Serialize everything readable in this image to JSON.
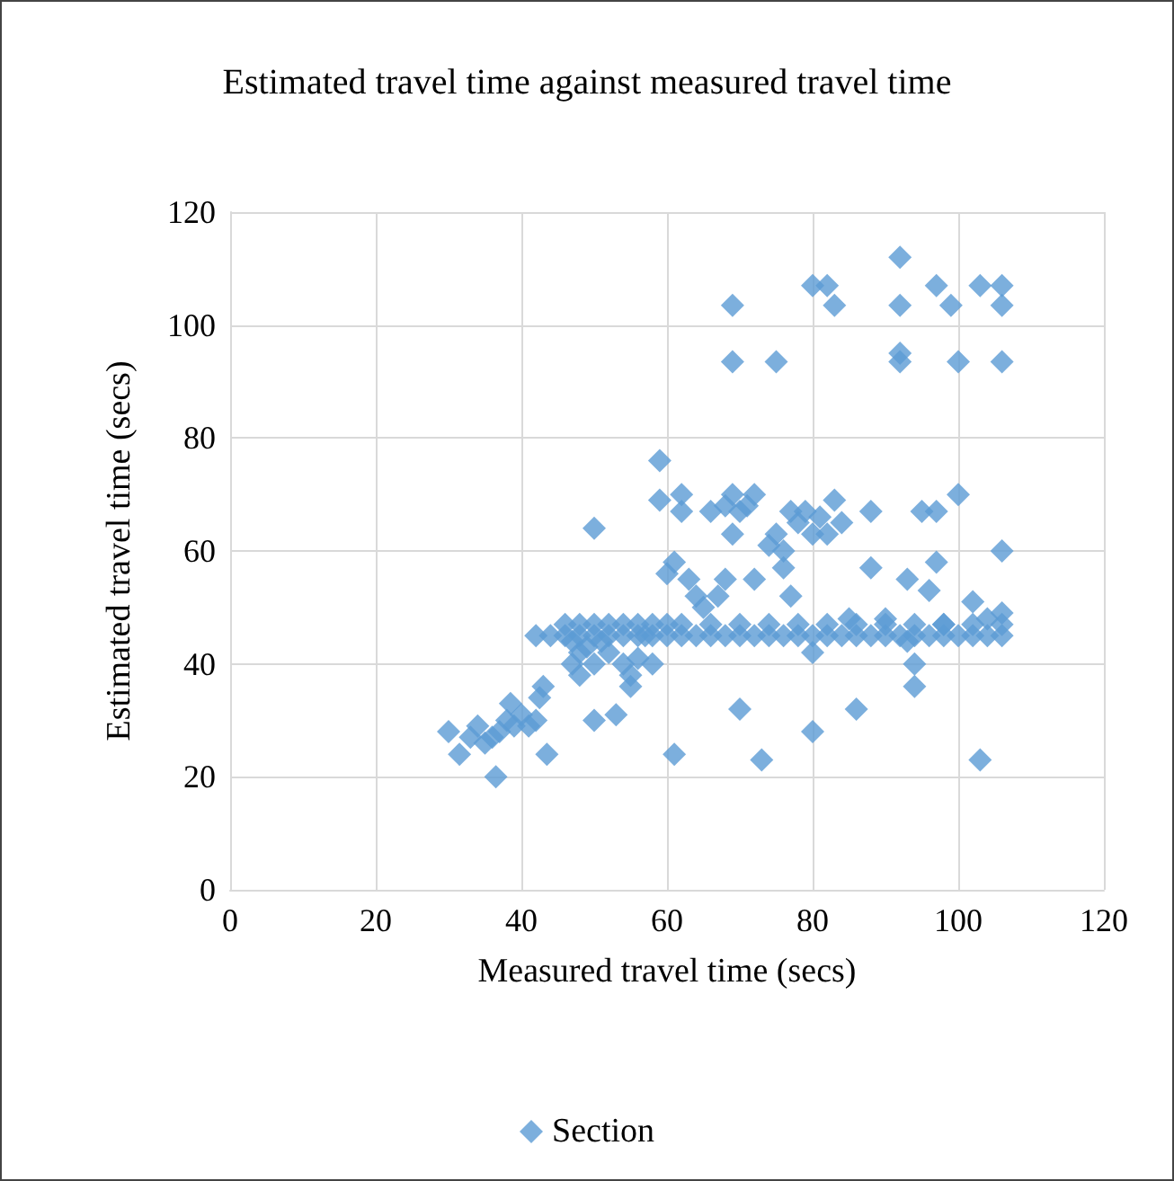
{
  "chart_data": {
    "type": "scatter",
    "title": "Estimated travel time against measured travel time",
    "xlabel": "Measured travel time (secs)",
    "ylabel": "Estimated travel time (secs)",
    "marker": "diamond",
    "grid": true,
    "legend": "bottom",
    "xlim": [
      0,
      120
    ],
    "xticks": [
      0,
      20,
      40,
      60,
      80,
      100,
      120
    ],
    "ylim": [
      0,
      120
    ],
    "yticks": [
      0,
      20,
      40,
      60,
      80,
      100,
      120
    ],
    "series": [
      {
        "name": "Section",
        "color": "#5b9bd5",
        "x": [
          30,
          31.5,
          33,
          34,
          35,
          36,
          36.5,
          37,
          38,
          38.5,
          39,
          40,
          41,
          42,
          42.5,
          43,
          43.5,
          42,
          47,
          47,
          48,
          48,
          49,
          50,
          50,
          50,
          51,
          52,
          53,
          54,
          55,
          55,
          56,
          57,
          58,
          59,
          59,
          60,
          61,
          61,
          62,
          62,
          63,
          64,
          65,
          66,
          67,
          68,
          68,
          69,
          69,
          70,
          70,
          71,
          72,
          72,
          73,
          74,
          75,
          76,
          76,
          77,
          77,
          78,
          79,
          80,
          80,
          80,
          81,
          82,
          83,
          84,
          85,
          86,
          88,
          88,
          90,
          93,
          93,
          94,
          94,
          95,
          96,
          97,
          97,
          98,
          100,
          102,
          103,
          104,
          106,
          106,
          69,
          69,
          75,
          80,
          82,
          83,
          92,
          92,
          92,
          92,
          97,
          99,
          100,
          103,
          106,
          106,
          106,
          44,
          46,
          48,
          50,
          52,
          54,
          56,
          58,
          60,
          62,
          64,
          66,
          68,
          70,
          72,
          74,
          76,
          78,
          80,
          82,
          84,
          86,
          88,
          90,
          92,
          94,
          96,
          98,
          100,
          102,
          104,
          106,
          46,
          48,
          50,
          52,
          54,
          56,
          58,
          60,
          62,
          66,
          70,
          74,
          78,
          82,
          86,
          90,
          94,
          98,
          102,
          106
        ],
        "values": [
          28,
          24,
          27,
          29,
          26,
          27,
          20,
          28,
          30,
          33,
          29,
          31,
          29,
          30,
          34,
          36,
          24,
          45,
          44,
          40,
          38,
          42,
          43,
          40,
          30,
          64,
          44,
          42,
          31,
          40,
          36,
          38,
          41,
          45,
          40,
          76,
          69,
          56,
          24,
          58,
          67,
          70,
          55,
          52,
          50,
          67,
          52,
          55,
          68,
          70,
          63,
          32,
          67,
          68,
          70,
          55,
          23,
          61,
          63,
          60,
          57,
          67,
          52,
          65,
          67,
          63,
          28,
          42,
          66,
          63,
          69,
          65,
          48,
          32,
          57,
          67,
          48,
          55,
          44,
          40,
          36,
          67,
          53,
          58,
          67,
          47,
          70,
          51,
          23,
          48,
          60,
          49,
          103.5,
          93.5,
          93.5,
          107,
          107,
          103.5,
          112,
          103.5,
          95,
          93.5,
          107,
          103.5,
          93.5,
          107,
          107,
          103.5,
          93.5,
          45,
          45,
          45,
          45,
          45,
          45,
          45,
          45,
          45,
          45,
          45,
          45,
          45,
          45,
          45,
          45,
          45,
          45,
          45,
          45,
          45,
          45,
          45,
          45,
          45,
          45,
          45,
          45,
          45,
          45,
          45,
          45,
          47,
          47,
          47,
          47,
          47,
          47,
          47,
          47,
          47,
          47,
          47,
          47,
          47,
          47,
          47,
          47,
          47,
          47,
          47,
          47
        ]
      }
    ]
  }
}
